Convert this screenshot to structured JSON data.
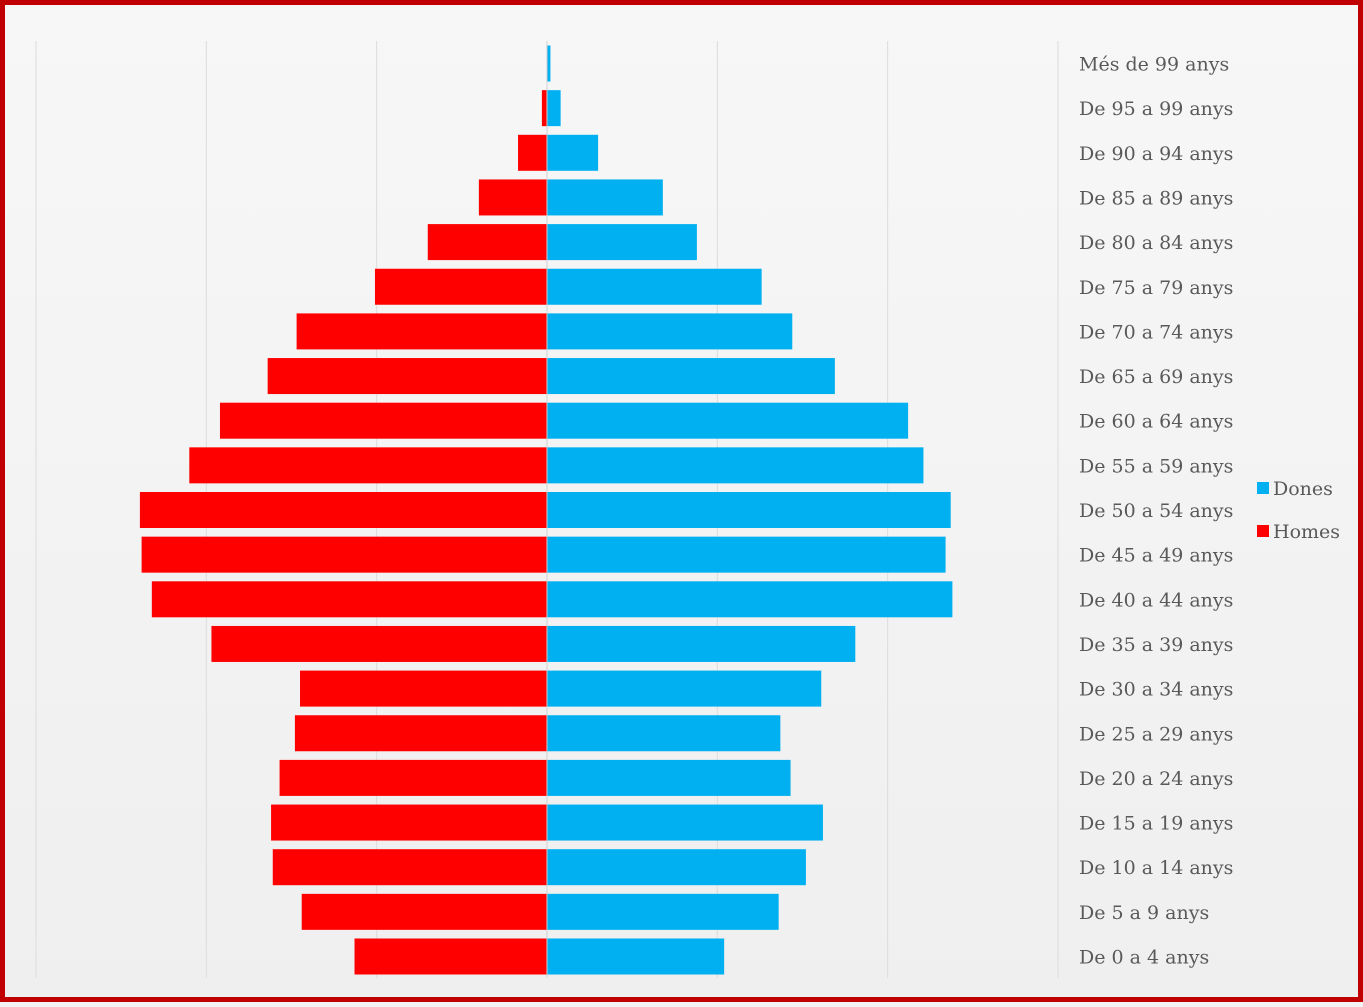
{
  "chart_data": {
    "type": "bar",
    "orientation": "horizontal",
    "subtype": "population-pyramid",
    "categories": [
      "Més de 99 anys",
      "De 95 a 99 anys",
      "De 90 a 94 anys",
      "De 85 a 89 anys",
      "De 80 a 84 anys",
      "De 75 a 79 anys",
      "De 70 a 74 anys",
      "De 65 a 69 anys",
      "De 60 a 64 anys",
      "De 55 a 59 anys",
      "De 50 a 54 anys",
      "De 45 a 49 anys",
      "De 40 a 44 anys",
      "De 35 a 39 anys",
      "De 30 a 34 anys",
      "De 25 a 29 anys",
      "De 20 a 24 anys",
      "De 15 a 19 anys",
      "De 10 a 14 anys",
      "De 5 a 9 anys",
      "De 0 a 4 anys"
    ],
    "series": [
      {
        "name": "Dones",
        "color": "#00b0f0",
        "values": [
          0.2,
          0.8,
          3.0,
          6.8,
          8.8,
          12.6,
          14.4,
          16.9,
          21.2,
          22.1,
          23.7,
          23.4,
          23.8,
          18.1,
          16.1,
          13.7,
          14.3,
          16.2,
          15.2,
          13.6,
          10.4
        ]
      },
      {
        "name": "Homes",
        "color": "#ff0000",
        "values": [
          0.0,
          -0.3,
          -1.7,
          -4.0,
          -7.0,
          -10.1,
          -14.7,
          -16.4,
          -19.2,
          -21.0,
          -23.9,
          -23.8,
          -23.2,
          -19.7,
          -14.5,
          -14.8,
          -15.7,
          -16.2,
          -16.1,
          -14.4,
          -11.3
        ]
      }
    ],
    "xlim": [
      -30,
      30
    ],
    "grid": true,
    "legend_position": "right",
    "xlabel": "",
    "ylabel": "",
    "title": ""
  }
}
